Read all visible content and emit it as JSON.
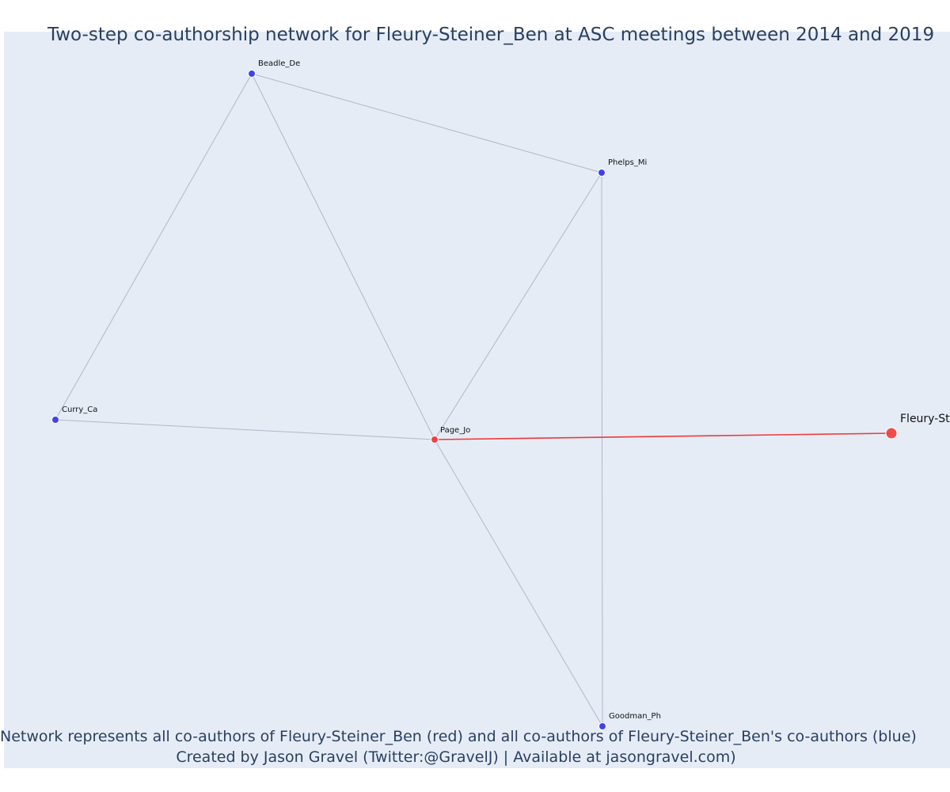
{
  "title": "Two-step co-authorship network for Fleury-Steiner_Ben at ASC meetings between 2014 and 2019",
  "caption": {
    "line1": "Network represents all co-authors of Fleury-Steiner_Ben (red) and all co-authors of Fleury-Steiner_Ben's co-authors (blue)",
    "line2": "Created by Jason Gravel (Twitter:@GravelJ) | Available at jasongravel.com)"
  },
  "colors": {
    "background": "#e5ecf6",
    "red": "#ef3b3b",
    "blue": "#3a3ae6",
    "edge": "#b3b6c8",
    "text": "#2a3f5f"
  },
  "nodes": [
    {
      "id": "Fleury-Steiner_Ben",
      "label": "Fleury-Steiner_Ben",
      "group": "focal"
    },
    {
      "id": "Page_Jo",
      "label": "Page_Jo",
      "group": "red"
    },
    {
      "id": "Beadle_De",
      "label": "Beadle_De",
      "group": "blue"
    },
    {
      "id": "Phelps_Mi",
      "label": "Phelps_Mi",
      "group": "blue"
    },
    {
      "id": "Curry_Ca",
      "label": "Curry_Ca",
      "group": "blue"
    },
    {
      "id": "Goodman_Ph",
      "label": "Goodman_Ph",
      "group": "blue"
    }
  ],
  "edges": [
    {
      "source": "Fleury-Steiner_Ben",
      "target": "Page_Jo",
      "type": "direct"
    },
    {
      "source": "Page_Jo",
      "target": "Beadle_De",
      "type": "indirect"
    },
    {
      "source": "Page_Jo",
      "target": "Phelps_Mi",
      "type": "indirect"
    },
    {
      "source": "Page_Jo",
      "target": "Curry_Ca",
      "type": "indirect"
    },
    {
      "source": "Page_Jo",
      "target": "Goodman_Ph",
      "type": "indirect"
    },
    {
      "source": "Beadle_De",
      "target": "Phelps_Mi",
      "type": "indirect"
    },
    {
      "source": "Beadle_De",
      "target": "Curry_Ca",
      "type": "indirect"
    },
    {
      "source": "Phelps_Mi",
      "target": "Goodman_Ph",
      "type": "indirect"
    }
  ]
}
